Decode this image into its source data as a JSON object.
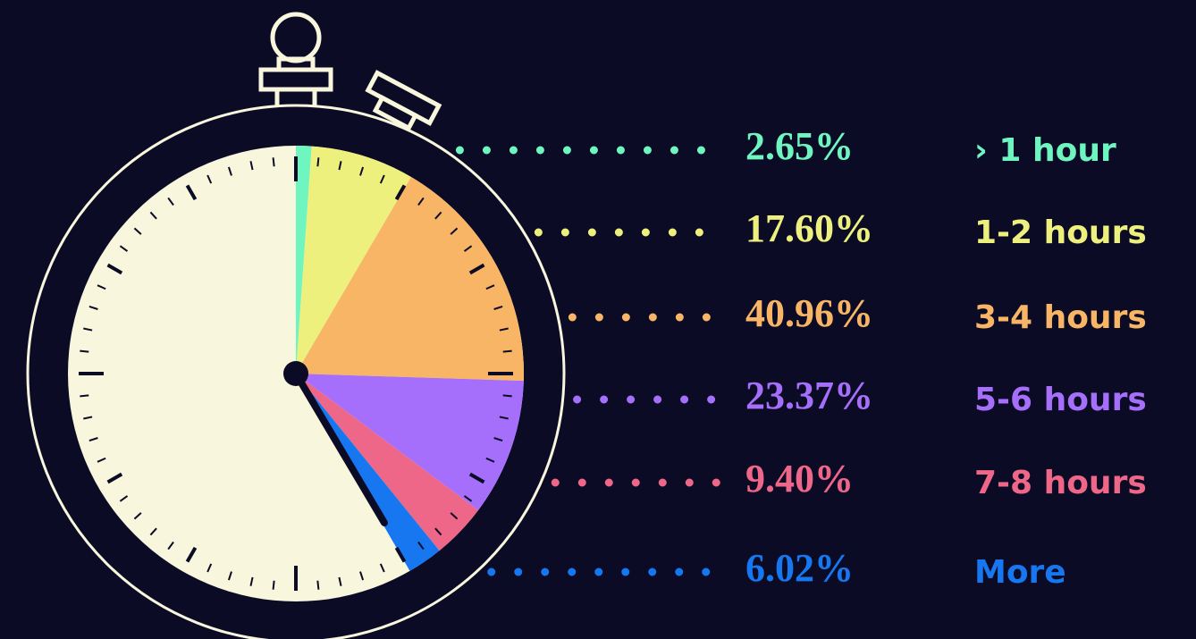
{
  "chart_data": {
    "type": "pie",
    "categories": [
      "› 1 hour",
      "1-2 hours",
      "3-4 hours",
      "5-6 hours",
      "7-8 hours",
      "More"
    ],
    "values": [
      2.65,
      17.6,
      40.96,
      23.37,
      9.4,
      6.02
    ],
    "value_labels": [
      "2.65%",
      "17.60%",
      "40.96%",
      "23.37%",
      "9.40%",
      "6.02%"
    ],
    "colors": [
      "#6ef5c0",
      "#eef07e",
      "#f8b565",
      "#a66ffb",
      "#ee6688",
      "#1677f0"
    ]
  }
}
